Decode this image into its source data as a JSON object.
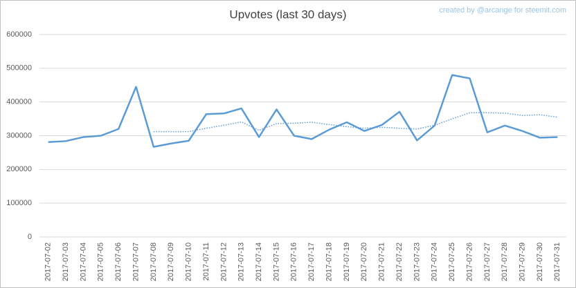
{
  "chart_data": {
    "type": "line",
    "title": "Upvotes (last 30 days)",
    "annotation": "created by @arcange for steemit.com",
    "categories": [
      "2017-07-02",
      "2017-07-03",
      "2017-07-04",
      "2017-07-05",
      "2017-07-06",
      "2017-07-07",
      "2017-07-08",
      "2017-07-09",
      "2017-07-10",
      "2017-07-11",
      "2017-07-12",
      "2017-07-13",
      "2017-07-14",
      "2017-07-15",
      "2017-07-16",
      "2017-07-17",
      "2017-07-18",
      "2017-07-19",
      "2017-07-20",
      "2017-07-21",
      "2017-07-22",
      "2017-07-23",
      "2017-07-24",
      "2017-07-25",
      "2017-07-26",
      "2017-07-27",
      "2017-07-28",
      "2017-07-29",
      "2017-07-30",
      "2017-07-31"
    ],
    "series": [
      {
        "color": "#5b9bd5",
        "style": "solid",
        "values": [
          281000,
          284000,
          296000,
          300000,
          320000,
          445000,
          267000,
          277000,
          285000,
          364000,
          366000,
          381000,
          296000,
          378000,
          300000,
          290000,
          318000,
          340000,
          314000,
          332000,
          371000,
          286000,
          330000,
          480000,
          470000,
          310000,
          330000,
          314000,
          294000,
          296000
        ]
      },
      {
        "color": "#5b9bd5",
        "style": "dotted",
        "values": [
          null,
          null,
          null,
          null,
          null,
          null,
          312000,
          312000,
          312000,
          322000,
          331000,
          341000,
          316000,
          336000,
          337000,
          340000,
          333000,
          327000,
          322000,
          325000,
          322000,
          320000,
          331000,
          350000,
          368000,
          368000,
          367000,
          360000,
          362000,
          355000
        ]
      }
    ],
    "ylim": [
      0,
      600000
    ],
    "yticks": [
      0,
      100000,
      200000,
      300000,
      400000,
      500000,
      600000
    ],
    "grid": true
  }
}
